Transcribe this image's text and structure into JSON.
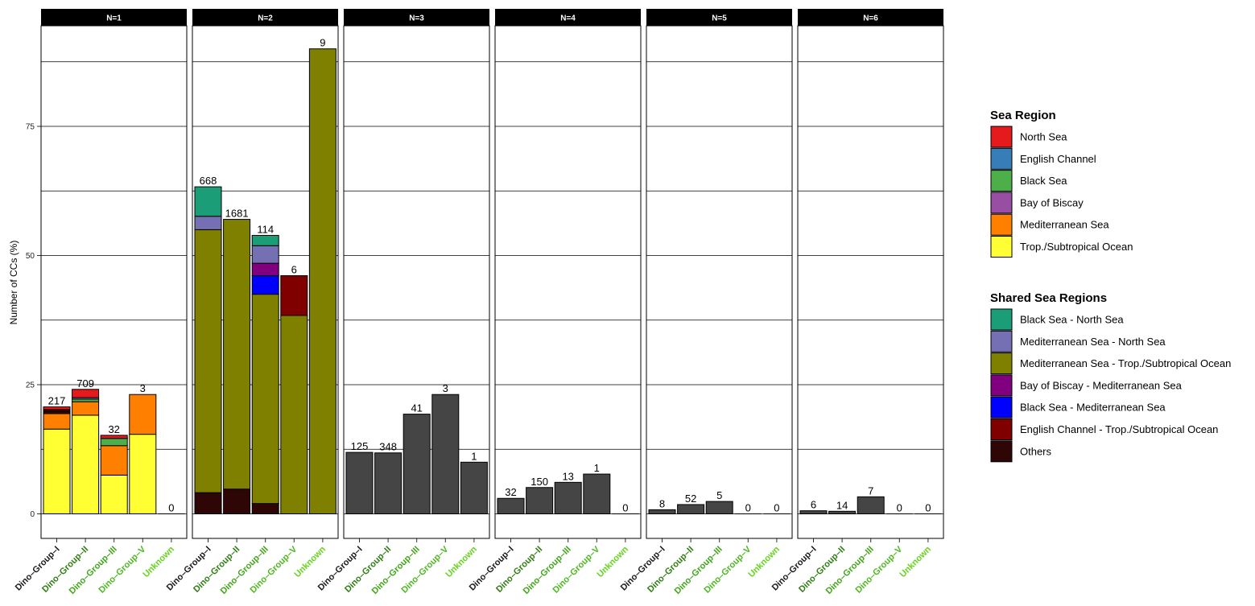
{
  "chart_data": {
    "type": "bar",
    "stacked": true,
    "ylabel": "Number of CCs (%)",
    "ylim": [
      -4,
      96
    ],
    "yticks": [
      0,
      25,
      50,
      75
    ],
    "grid": true,
    "legend_position": "right",
    "categories": [
      "Dino–Group–I",
      "Dino–Group–II",
      "Dino–Group–III",
      "Dino–Group–V",
      "Unknown"
    ],
    "category_colors": [
      "#1a1a1a",
      "#2f7d12",
      "#3fa617",
      "#4cb81f",
      "#66d41d"
    ],
    "legends": [
      {
        "title": "Sea Region",
        "items": [
          {
            "label": "North Sea",
            "color": "#e41a1c"
          },
          {
            "label": "English Channel",
            "color": "#377eb8"
          },
          {
            "label": "Black Sea",
            "color": "#4daf4a"
          },
          {
            "label": "Bay of Biscay",
            "color": "#984ea3"
          },
          {
            "label": "Mediterranean Sea",
            "color": "#ff7f00"
          },
          {
            "label": "Trop./Subtropical Ocean",
            "color": "#ffff33"
          }
        ]
      },
      {
        "title": "Shared Sea Regions",
        "items": [
          {
            "label": "Black Sea - North Sea",
            "color": "#1b9e77"
          },
          {
            "label": "Mediterranean Sea - North Sea",
            "color": "#7570b3"
          },
          {
            "label": "Mediterranean Sea - Trop./Subtropical Ocean",
            "color": "#808000"
          },
          {
            "label": "Bay of Biscay - Mediterranean Sea",
            "color": "#800080"
          },
          {
            "label": "Black Sea - Mediterranean Sea",
            "color": "#0000ff"
          },
          {
            "label": "English Channel - Trop./Subtropical Ocean",
            "color": "#800000"
          },
          {
            "label": "Others",
            "color": "#2e0606"
          }
        ]
      }
    ],
    "other_color": "#454545",
    "panels": [
      {
        "title": "N=1",
        "bars": [
          {
            "label": "217",
            "segments": [
              {
                "color": "#ffff33",
                "value": 16.4
              },
              {
                "color": "#ff7f00",
                "value": 3.0
              },
              {
                "color": "#2e0606",
                "value": 0.5
              },
              {
                "color": "#800000",
                "value": 0.3
              },
              {
                "color": "#e41a1c",
                "value": 0.5
              }
            ]
          },
          {
            "label": "709",
            "segments": [
              {
                "color": "#ffff33",
                "value": 19.1
              },
              {
                "color": "#ff7f00",
                "value": 2.6
              },
              {
                "color": "#4daf4a",
                "value": 0.5
              },
              {
                "color": "#7570b3",
                "value": 0.3
              },
              {
                "color": "#e41a1c",
                "value": 1.6
              }
            ]
          },
          {
            "label": "32",
            "segments": [
              {
                "color": "#ffff33",
                "value": 7.5
              },
              {
                "color": "#ff7f00",
                "value": 5.7
              },
              {
                "color": "#4daf4a",
                "value": 1.4
              },
              {
                "color": "#e41a1c",
                "value": 0.6
              }
            ]
          },
          {
            "label": "3",
            "segments": [
              {
                "color": "#ffff33",
                "value": 15.4
              },
              {
                "color": "#ff7f00",
                "value": 7.7
              }
            ]
          },
          {
            "label": "0",
            "segments": []
          }
        ]
      },
      {
        "title": "N=2",
        "bars": [
          {
            "label": "668",
            "segments": [
              {
                "color": "#2e0606",
                "value": 4.1
              },
              {
                "color": "#808000",
                "value": 50.9
              },
              {
                "color": "#7570b3",
                "value": 2.6
              },
              {
                "color": "#1b9e77",
                "value": 5.7
              }
            ]
          },
          {
            "label": "1681",
            "segments": [
              {
                "color": "#2e0606",
                "value": 4.8
              },
              {
                "color": "#808000",
                "value": 52.2
              }
            ]
          },
          {
            "label": "114",
            "segments": [
              {
                "color": "#2e0606",
                "value": 2.0
              },
              {
                "color": "#808000",
                "value": 40.5
              },
              {
                "color": "#0000ff",
                "value": 3.6
              },
              {
                "color": "#800080",
                "value": 2.4
              },
              {
                "color": "#7570b3",
                "value": 3.4
              },
              {
                "color": "#1b9e77",
                "value": 2.0
              }
            ]
          },
          {
            "label": "6",
            "segments": [
              {
                "color": "#808000",
                "value": 38.4
              },
              {
                "color": "#800000",
                "value": 7.7
              }
            ]
          },
          {
            "label": "9",
            "segments": [
              {
                "color": "#808000",
                "value": 90.0
              }
            ]
          }
        ]
      },
      {
        "title": "N=3",
        "bars": [
          {
            "label": "125",
            "segments": [
              {
                "color": "#454545",
                "value": 11.9
              }
            ]
          },
          {
            "label": "348",
            "segments": [
              {
                "color": "#454545",
                "value": 11.8
              }
            ]
          },
          {
            "label": "41",
            "segments": [
              {
                "color": "#454545",
                "value": 19.3
              }
            ]
          },
          {
            "label": "3",
            "segments": [
              {
                "color": "#454545",
                "value": 23.1
              }
            ]
          },
          {
            "label": "1",
            "segments": [
              {
                "color": "#454545",
                "value": 10.0
              }
            ]
          }
        ]
      },
      {
        "title": "N=4",
        "bars": [
          {
            "label": "32",
            "segments": [
              {
                "color": "#454545",
                "value": 3.0
              }
            ]
          },
          {
            "label": "150",
            "segments": [
              {
                "color": "#454545",
                "value": 5.1
              }
            ]
          },
          {
            "label": "13",
            "segments": [
              {
                "color": "#454545",
                "value": 6.1
              }
            ]
          },
          {
            "label": "1",
            "segments": [
              {
                "color": "#454545",
                "value": 7.7
              }
            ]
          },
          {
            "label": "0",
            "segments": []
          }
        ]
      },
      {
        "title": "N=5",
        "bars": [
          {
            "label": "8",
            "segments": [
              {
                "color": "#454545",
                "value": 0.8
              }
            ]
          },
          {
            "label": "52",
            "segments": [
              {
                "color": "#454545",
                "value": 1.8
              }
            ]
          },
          {
            "label": "5",
            "segments": [
              {
                "color": "#454545",
                "value": 2.4
              }
            ]
          },
          {
            "label": "0",
            "segments": []
          },
          {
            "label": "0",
            "segments": []
          }
        ]
      },
      {
        "title": "N=6",
        "bars": [
          {
            "label": "6",
            "segments": [
              {
                "color": "#454545",
                "value": 0.6
              }
            ]
          },
          {
            "label": "14",
            "segments": [
              {
                "color": "#454545",
                "value": 0.5
              }
            ]
          },
          {
            "label": "7",
            "segments": [
              {
                "color": "#454545",
                "value": 3.3
              }
            ]
          },
          {
            "label": "0",
            "segments": []
          },
          {
            "label": "0",
            "segments": []
          }
        ]
      }
    ]
  }
}
